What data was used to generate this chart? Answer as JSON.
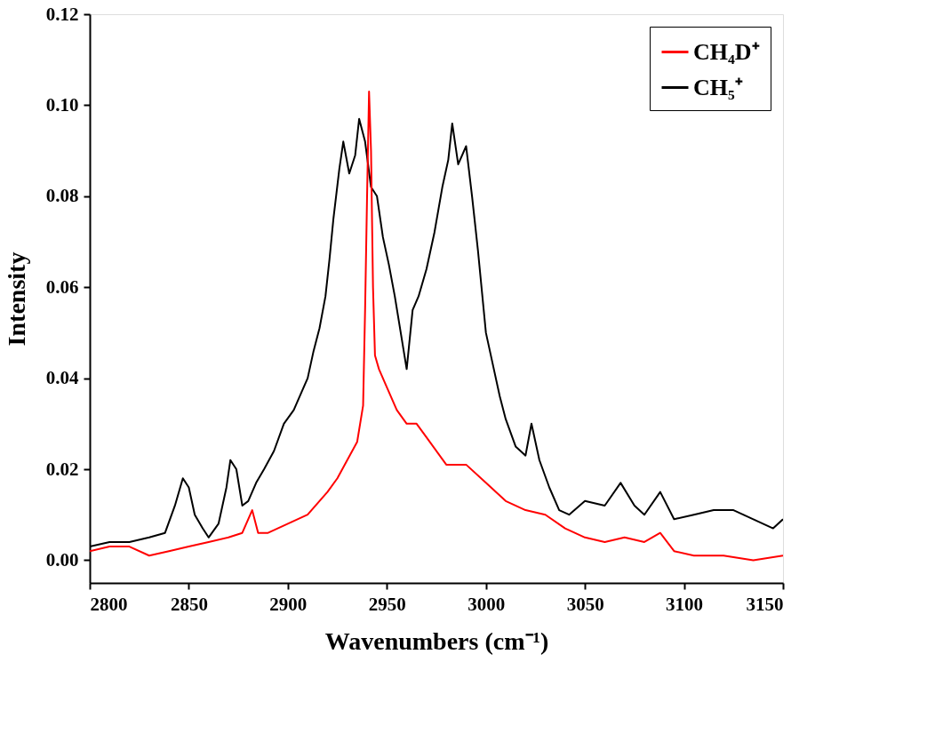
{
  "chart_data": {
    "type": "line",
    "xlabel": "Wavenumbers (cm⁻¹)",
    "ylabel": "Intensity",
    "xlim": [
      2800,
      3150
    ],
    "xticks": [
      2800,
      2850,
      2900,
      2950,
      3000,
      3050,
      3100,
      3150
    ],
    "ylim": [
      -0.005,
      0.12
    ],
    "yticks": [
      {
        "value": 0,
        "label": "0.00"
      },
      {
        "value": 0.02,
        "label": "0.02"
      },
      {
        "value": 0.04,
        "label": "0.04"
      },
      {
        "value": 0.06,
        "label": "0.06"
      },
      {
        "value": 0.08,
        "label": "0.08"
      },
      {
        "value": 0.1,
        "label": "0.10"
      },
      {
        "value": 0.12,
        "label": "0.12"
      }
    ],
    "grid": false,
    "legend": "top right",
    "line_style": "solid",
    "series": [
      {
        "name": "CH₄D⁺",
        "color": "#ff0000",
        "x": [
          2800,
          2810,
          2820,
          2830,
          2840,
          2850,
          2860,
          2870,
          2877,
          2882,
          2885,
          2890,
          2900,
          2910,
          2920,
          2925,
          2930,
          2935,
          2938,
          2939,
          2940,
          2941,
          2942,
          2943,
          2944,
          2946,
          2950,
          2955,
          2960,
          2965,
          2970,
          2980,
          2990,
          3000,
          3010,
          3020,
          3030,
          3040,
          3050,
          3060,
          3070,
          3080,
          3088,
          3095,
          3105,
          3120,
          3135,
          3150
        ],
        "values": [
          0.002,
          0.003,
          0.003,
          0.001,
          0.002,
          0.003,
          0.004,
          0.005,
          0.006,
          0.011,
          0.006,
          0.006,
          0.008,
          0.01,
          0.015,
          0.018,
          0.022,
          0.026,
          0.034,
          0.055,
          0.08,
          0.103,
          0.09,
          0.06,
          0.045,
          0.042,
          0.038,
          0.033,
          0.03,
          0.03,
          0.027,
          0.021,
          0.021,
          0.017,
          0.013,
          0.011,
          0.01,
          0.007,
          0.005,
          0.004,
          0.005,
          0.004,
          0.006,
          0.002,
          0.001,
          0.001,
          0.0,
          0.001
        ]
      },
      {
        "name": "CH₅⁺",
        "color": "#000000",
        "x": [
          2800,
          2810,
          2820,
          2830,
          2838,
          2843,
          2847,
          2850,
          2853,
          2857,
          2860,
          2865,
          2869,
          2871,
          2874,
          2877,
          2880,
          2884,
          2888,
          2893,
          2898,
          2903,
          2907,
          2910,
          2913,
          2916,
          2919,
          2921,
          2923,
          2926,
          2928,
          2931,
          2934,
          2936,
          2939,
          2942,
          2945,
          2948,
          2951,
          2954,
          2957,
          2960,
          2963,
          2966,
          2970,
          2974,
          2978,
          2981,
          2983,
          2986,
          2990,
          2993,
          2996,
          3000,
          3003,
          3007,
          3010,
          3015,
          3020,
          3023,
          3027,
          3032,
          3037,
          3042,
          3050,
          3060,
          3068,
          3075,
          3080,
          3088,
          3095,
          3105,
          3115,
          3125,
          3135,
          3145,
          3150
        ],
        "values": [
          0.003,
          0.004,
          0.004,
          0.005,
          0.006,
          0.012,
          0.018,
          0.016,
          0.01,
          0.007,
          0.005,
          0.008,
          0.016,
          0.022,
          0.02,
          0.012,
          0.013,
          0.017,
          0.02,
          0.024,
          0.03,
          0.033,
          0.037,
          0.04,
          0.046,
          0.051,
          0.058,
          0.066,
          0.075,
          0.086,
          0.092,
          0.085,
          0.089,
          0.097,
          0.092,
          0.082,
          0.08,
          0.071,
          0.065,
          0.058,
          0.05,
          0.042,
          0.055,
          0.058,
          0.064,
          0.072,
          0.082,
          0.088,
          0.096,
          0.087,
          0.091,
          0.08,
          0.068,
          0.05,
          0.044,
          0.036,
          0.031,
          0.025,
          0.023,
          0.03,
          0.022,
          0.016,
          0.011,
          0.01,
          0.013,
          0.012,
          0.017,
          0.012,
          0.01,
          0.015,
          0.009,
          0.01,
          0.011,
          0.011,
          0.009,
          0.007,
          0.009
        ]
      }
    ]
  }
}
